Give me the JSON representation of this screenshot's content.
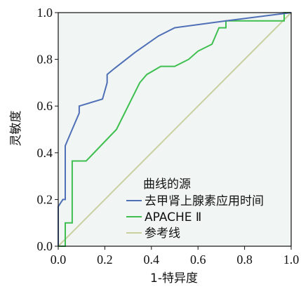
{
  "chart_data": {
    "type": "line",
    "xlabel": "1-特异度",
    "ylabel": "灵敏度",
    "xlim": [
      0.0,
      1.0
    ],
    "ylim": [
      0.0,
      1.0
    ],
    "x_ticks": [
      "0.0",
      "0.2",
      "0.4",
      "0.6",
      "0.8",
      "1.0"
    ],
    "y_ticks": [
      "0.0",
      "0.2",
      "0.4",
      "0.6",
      "0.8",
      "1.0"
    ],
    "grid": false,
    "legend": {
      "title": "曲线的源",
      "placement": "bottom-right"
    },
    "colors": {
      "plot_background": "#f1f6f5",
      "axis": "#111111"
    },
    "series": [
      {
        "name": "去甲肾上腺素应用时间",
        "color": "#4f6fb6",
        "points": [
          [
            0.0,
            0.0
          ],
          [
            0.0,
            0.17
          ],
          [
            0.02,
            0.2
          ],
          [
            0.03,
            0.2
          ],
          [
            0.03,
            0.43
          ],
          [
            0.06,
            0.5
          ],
          [
            0.09,
            0.57
          ],
          [
            0.09,
            0.6
          ],
          [
            0.19,
            0.63
          ],
          [
            0.21,
            0.7
          ],
          [
            0.21,
            0.735
          ],
          [
            0.24,
            0.76
          ],
          [
            0.33,
            0.83
          ],
          [
            0.43,
            0.9
          ],
          [
            0.5,
            0.935
          ],
          [
            0.72,
            0.965
          ],
          [
            1.0,
            1.0
          ]
        ]
      },
      {
        "name": "APACHE Ⅱ",
        "color": "#3fbf4f",
        "points": [
          [
            0.0,
            0.0
          ],
          [
            0.03,
            0.0
          ],
          [
            0.03,
            0.1
          ],
          [
            0.06,
            0.1
          ],
          [
            0.06,
            0.365
          ],
          [
            0.12,
            0.365
          ],
          [
            0.25,
            0.5
          ],
          [
            0.35,
            0.7
          ],
          [
            0.38,
            0.735
          ],
          [
            0.44,
            0.77
          ],
          [
            0.5,
            0.77
          ],
          [
            0.56,
            0.8
          ],
          [
            0.6,
            0.835
          ],
          [
            0.66,
            0.865
          ],
          [
            0.69,
            0.935
          ],
          [
            0.72,
            0.935
          ],
          [
            0.72,
            0.965
          ],
          [
            0.97,
            0.965
          ],
          [
            0.97,
            1.0
          ],
          [
            1.0,
            1.0
          ]
        ]
      },
      {
        "name": "参考线",
        "color": "#c9cf9f",
        "points": [
          [
            0.0,
            0.0
          ],
          [
            1.0,
            1.0
          ]
        ]
      }
    ]
  }
}
